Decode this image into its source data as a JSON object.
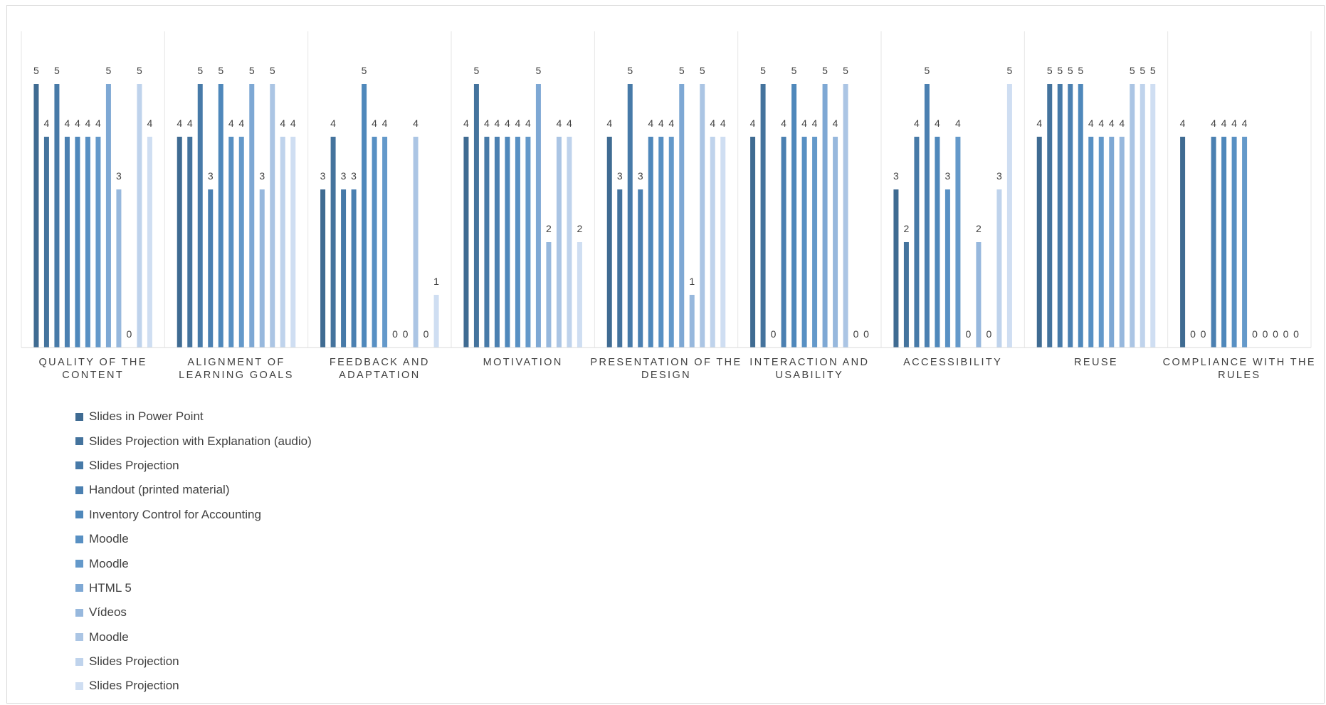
{
  "chart_data": {
    "type": "bar",
    "title": "",
    "xlabel": "",
    "ylabel": "",
    "ylim": [
      0,
      5
    ],
    "grid": false,
    "legend_position": "bottom-left",
    "categories": [
      "QUALITY OF THE CONTENT",
      "ALIGNMENT OF LEARNING GOALS",
      "FEEDBACK AND ADAPTATION",
      "MOTIVATION",
      "PRESENTATION OF THE DESIGN",
      "INTERACTION AND USABILITY",
      "ACCESSIBILITY",
      "REUSE",
      "COMPLIANCE WITH THE RULES"
    ],
    "series": [
      {
        "name": "Slides in Power Point",
        "color": "#3f6b92",
        "values": [
          5,
          4,
          3,
          4,
          4,
          4,
          3,
          4,
          4
        ]
      },
      {
        "name": "Slides Projection with Explanation (audio)",
        "color": "#44739d",
        "values": [
          4,
          4,
          4,
          5,
          3,
          5,
          2,
          5,
          0
        ]
      },
      {
        "name": "Slides Projection",
        "color": "#477aa8",
        "values": [
          5,
          5,
          3,
          4,
          5,
          0,
          4,
          5,
          0
        ]
      },
      {
        "name": "Handout (printed material)",
        "color": "#4b80b1",
        "values": [
          4,
          3,
          3,
          4,
          3,
          4,
          5,
          5,
          4
        ]
      },
      {
        "name": "Inventory Control for Accounting",
        "color": "#4f88bb",
        "values": [
          4,
          5,
          5,
          4,
          4,
          5,
          4,
          5,
          4
        ]
      },
      {
        "name": "Moodle",
        "color": "#5890c3",
        "values": [
          4,
          4,
          4,
          4,
          4,
          4,
          3,
          4,
          4
        ]
      },
      {
        "name": "Moodle",
        "color": "#6499ca",
        "values": [
          4,
          4,
          4,
          4,
          4,
          4,
          4,
          4,
          4
        ]
      },
      {
        "name": "HTML 5",
        "color": "#7ea8d4",
        "values": [
          5,
          5,
          0,
          5,
          5,
          5,
          0,
          4,
          0
        ]
      },
      {
        "name": "Vídeos",
        "color": "#97b8dd",
        "values": [
          3,
          3,
          0,
          2,
          1,
          4,
          2,
          4,
          0
        ]
      },
      {
        "name": "Moodle",
        "color": "#abc5e4",
        "values": [
          0,
          5,
          4,
          4,
          5,
          5,
          0,
          5,
          0
        ]
      },
      {
        "name": "Slides Projection",
        "color": "#bfd3ec",
        "values": [
          5,
          4,
          0,
          4,
          4,
          0,
          3,
          5,
          0
        ]
      },
      {
        "name": "Slides Projection",
        "color": "#cfdef2",
        "values": [
          4,
          4,
          1,
          2,
          4,
          0,
          5,
          5,
          0
        ]
      }
    ]
  }
}
